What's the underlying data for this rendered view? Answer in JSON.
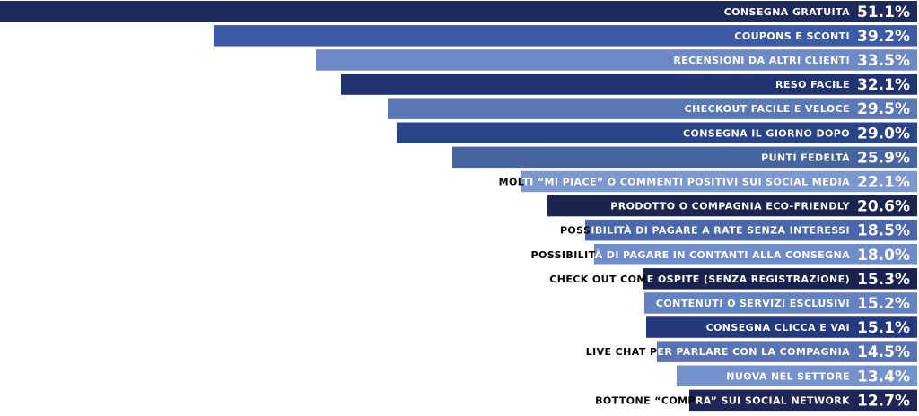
{
  "chart_data": {
    "type": "bar",
    "orientation": "horizontal",
    "title": "",
    "xlabel": "",
    "ylabel": "",
    "xlim": [
      0,
      51.1
    ],
    "categories": [
      "CONSEGNA GRATUITA",
      "COUPONS E SCONTI",
      "RECENSIONI DA ALTRI CLIENTI",
      "RESO FACILE",
      "CHECKOUT FACILE E VELOCE",
      "CONSEGNA IL GIORNO DOPO",
      "PUNTI FEDELTÀ",
      "MOLTI “MI PIACE” O COMMENTI POSITIVI SUI SOCIAL MEDIA",
      "PRODOTTO O COMPAGNIA ECO-FRIENDLY",
      "POSSIBILITÀ DI PAGARE A RATE SENZA INTERESSI",
      "POSSIBILITÀ DI PAGARE IN CONTANTI ALLA CONSEGNA",
      "CHECK OUT COME OSPITE (SENZA REGISTRAZIONE)",
      "CONTENUTI O SERVIZI ESCLUSIVI",
      "CONSEGNA CLICCA E VAI",
      "LIVE CHAT PER PARLARE CON LA COMPAGNIA",
      "NUOVA NEL SETTORE",
      "BOTTONE “COMPRA” SUI SOCIAL NETWORK"
    ],
    "values": [
      51.1,
      39.2,
      33.5,
      32.1,
      29.5,
      29.0,
      25.9,
      22.1,
      20.6,
      18.5,
      18.0,
      15.3,
      15.2,
      15.1,
      14.5,
      13.4,
      12.7
    ],
    "value_labels": [
      "51.1%",
      "39.2%",
      "33.5%",
      "32.1%",
      "29.5%",
      "29.0%",
      "25.9%",
      "22.1%",
      "20.6%",
      "18.5%",
      "18.0%",
      "15.3%",
      "15.2%",
      "15.1%",
      "14.5%",
      "13.4%",
      "12.7%"
    ],
    "bar_colors": [
      "#1e2a5c",
      "#3c5aa6",
      "#6e8ac6",
      "#223371",
      "#5a77b6",
      "#2a4488",
      "#46659f",
      "#7d98cf",
      "#1c2450",
      "#4a67ad",
      "#6f8ccb",
      "#1a2252",
      "#6482c2",
      "#25397f",
      "#5a73b2",
      "#7592cd",
      "#1e2658"
    ],
    "label_color_on_bar": "#ffffff",
    "label_color_off_bar": "#000000"
  }
}
